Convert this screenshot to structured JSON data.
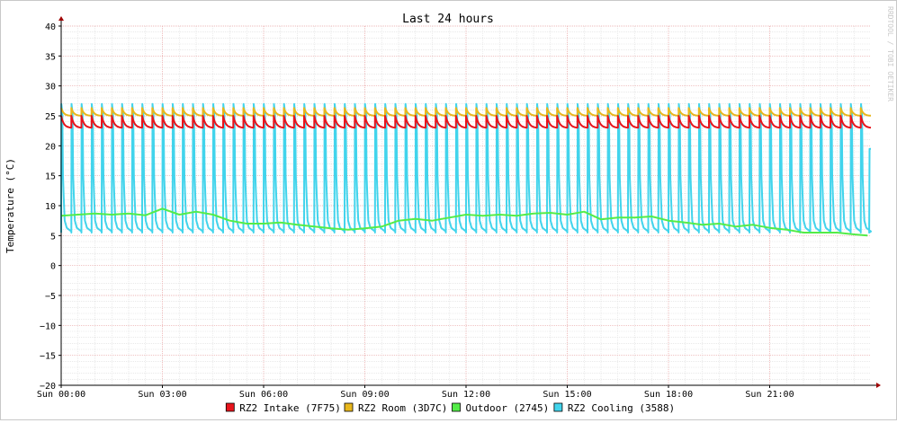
{
  "chart_data": {
    "type": "line",
    "title": "Last 24 hours",
    "ylabel": "Temperature (°C)",
    "xlabel": "",
    "watermark": "RRDTOOL / TOBI OETIKER",
    "ylim": [
      -20,
      40
    ],
    "yticks": [
      40,
      35,
      30,
      25,
      20,
      15,
      10,
      5,
      0,
      -5,
      -10,
      -15,
      -20
    ],
    "x_range_hours": [
      0,
      24
    ],
    "xticks": [
      {
        "hour": 0,
        "label": "Sun 00:00"
      },
      {
        "hour": 3,
        "label": "Sun 03:00"
      },
      {
        "hour": 6,
        "label": "Sun 06:00"
      },
      {
        "hour": 9,
        "label": "Sun 09:00"
      },
      {
        "hour": 12,
        "label": "Sun 12:00"
      },
      {
        "hour": 15,
        "label": "Sun 15:00"
      },
      {
        "hour": 18,
        "label": "Sun 18:00"
      },
      {
        "hour": 21,
        "label": "Sun 21:00"
      }
    ],
    "grid": true,
    "legend_position": "bottom",
    "series": [
      {
        "name": "RZ2 Intake (7F75)",
        "color": "#e8141c",
        "pattern": "sawtooth",
        "hours": [
          0.0,
          0.3,
          0.6,
          0.9,
          1.2,
          1.5,
          1.8,
          2.1,
          2.4,
          2.7,
          3.0,
          3.3,
          3.6,
          3.9,
          4.2,
          4.5,
          4.8,
          5.1,
          5.4,
          5.7,
          6.0,
          6.3,
          6.6,
          6.9,
          7.2,
          7.5,
          7.8,
          8.1,
          8.4,
          8.7,
          9.0,
          9.3,
          9.6,
          9.9,
          10.2,
          10.5,
          10.8,
          11.1,
          11.4,
          11.7,
          12.0,
          12.3,
          12.6,
          12.9,
          13.2,
          13.5,
          13.8,
          14.1,
          14.4,
          14.7,
          15.0,
          15.3,
          15.6,
          15.9,
          16.2,
          16.5,
          16.8,
          17.1,
          17.4,
          17.7,
          18.0,
          18.3,
          18.6,
          18.9,
          19.2,
          19.5,
          19.8,
          20.1,
          20.4,
          20.7,
          21.0,
          21.3,
          21.6,
          21.9,
          22.2,
          22.5,
          22.8,
          23.1,
          23.4,
          23.7
        ],
        "peak": 25.0,
        "base": 23.0
      },
      {
        "name": "RZ2 Room (3D7C)",
        "color": "#e8b71c",
        "pattern": "sawtooth",
        "hours": [
          0.0,
          0.3,
          0.6,
          0.9,
          1.2,
          1.5,
          1.8,
          2.1,
          2.4,
          2.7,
          3.0,
          3.3,
          3.6,
          3.9,
          4.2,
          4.5,
          4.8,
          5.1,
          5.4,
          5.7,
          6.0,
          6.3,
          6.6,
          6.9,
          7.2,
          7.5,
          7.8,
          8.1,
          8.4,
          8.7,
          9.0,
          9.3,
          9.6,
          9.9,
          10.2,
          10.5,
          10.8,
          11.1,
          11.4,
          11.7,
          12.0,
          12.3,
          12.6,
          12.9,
          13.2,
          13.5,
          13.8,
          14.1,
          14.4,
          14.7,
          15.0,
          15.3,
          15.6,
          15.9,
          16.2,
          16.5,
          16.8,
          17.1,
          17.4,
          17.7,
          18.0,
          18.3,
          18.6,
          18.9,
          19.2,
          19.5,
          19.8,
          20.1,
          20.4,
          20.7,
          21.0,
          21.3,
          21.6,
          21.9,
          22.2,
          22.5,
          22.8,
          23.1,
          23.4,
          23.7
        ],
        "peak": 26.3,
        "base": 25.0
      },
      {
        "name": "Outdoor (2745)",
        "color": "#54ec48",
        "pattern": "line",
        "x": [
          0.0,
          0.5,
          1.0,
          1.5,
          2.0,
          2.5,
          3.0,
          3.5,
          4.0,
          4.5,
          5.0,
          5.5,
          6.0,
          6.5,
          7.0,
          7.5,
          8.0,
          8.5,
          9.0,
          9.5,
          10.0,
          10.5,
          11.0,
          11.5,
          12.0,
          12.5,
          13.0,
          13.5,
          14.0,
          14.5,
          15.0,
          15.5,
          16.0,
          16.5,
          17.0,
          17.5,
          18.0,
          18.5,
          19.0,
          19.5,
          20.0,
          20.5,
          21.0,
          21.5,
          22.0,
          22.5,
          23.0,
          23.5,
          23.9
        ],
        "values": [
          8.3,
          8.5,
          8.7,
          8.5,
          8.7,
          8.4,
          9.5,
          8.5,
          9.0,
          8.5,
          7.5,
          7.0,
          7.0,
          7.2,
          6.8,
          6.5,
          6.2,
          6.0,
          6.2,
          6.5,
          7.5,
          7.8,
          7.5,
          8.0,
          8.5,
          8.3,
          8.5,
          8.3,
          8.7,
          8.8,
          8.5,
          9.0,
          7.7,
          8.0,
          8.0,
          8.2,
          7.5,
          7.2,
          6.8,
          7.0,
          6.5,
          6.8,
          6.3,
          6.0,
          5.5,
          5.5,
          5.5,
          5.2,
          5.0
        ]
      },
      {
        "name": "RZ2 Cooling (3588)",
        "color": "#42d4ec",
        "pattern": "pulse",
        "hours": [
          0.0,
          0.3,
          0.6,
          0.9,
          1.2,
          1.5,
          1.8,
          2.1,
          2.4,
          2.7,
          3.0,
          3.3,
          3.6,
          3.9,
          4.2,
          4.5,
          4.8,
          5.1,
          5.4,
          5.7,
          6.0,
          6.3,
          6.6,
          6.9,
          7.2,
          7.5,
          7.8,
          8.1,
          8.4,
          8.7,
          9.0,
          9.3,
          9.6,
          9.9,
          10.2,
          10.5,
          10.8,
          11.1,
          11.4,
          11.7,
          12.0,
          12.3,
          12.6,
          12.9,
          13.2,
          13.5,
          13.8,
          14.1,
          14.4,
          14.7,
          15.0,
          15.3,
          15.6,
          15.9,
          16.2,
          16.5,
          16.8,
          17.1,
          17.4,
          17.7,
          18.0,
          18.3,
          18.6,
          18.9,
          19.2,
          19.5,
          19.8,
          20.1,
          20.4,
          20.7,
          21.0,
          21.3,
          21.6,
          21.9,
          22.2,
          22.5,
          22.8,
          23.1,
          23.4,
          23.7
        ],
        "peak": 27.0,
        "base": 5.5,
        "end_value": 19.5
      }
    ]
  }
}
